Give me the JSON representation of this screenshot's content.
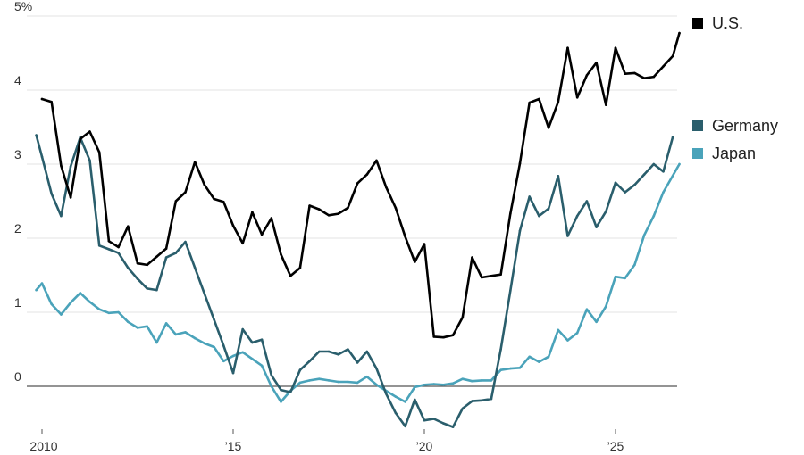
{
  "chart_data": {
    "type": "line",
    "title": "",
    "xlabel": "",
    "ylabel": "",
    "x_domain": [
      2009.8,
      2026.5
    ],
    "ylim": [
      -0.55,
      5.0
    ],
    "y_ticks": [
      {
        "value": 5,
        "label": "5%"
      },
      {
        "value": 4,
        "label": "4"
      },
      {
        "value": 3,
        "label": "3"
      },
      {
        "value": 2,
        "label": "2"
      },
      {
        "value": 1,
        "label": "1"
      },
      {
        "value": 0,
        "label": "0"
      }
    ],
    "x_ticks": [
      {
        "value": 2010,
        "label": "2010"
      },
      {
        "value": 2015,
        "label": "’15"
      },
      {
        "value": 2020,
        "label": "’20"
      },
      {
        "value": 2025,
        "label": "’25"
      }
    ],
    "legend": {
      "placement": "right"
    },
    "series": [
      {
        "name": "U.S.",
        "color": "#000000",
        "points": [
          [
            2010.0,
            3.88
          ],
          [
            2010.25,
            3.84
          ],
          [
            2010.5,
            2.98
          ],
          [
            2010.75,
            2.55
          ],
          [
            2011.0,
            3.34
          ],
          [
            2011.25,
            3.44
          ],
          [
            2011.5,
            3.16
          ],
          [
            2011.75,
            1.96
          ],
          [
            2012.0,
            1.88
          ],
          [
            2012.25,
            2.16
          ],
          [
            2012.5,
            1.66
          ],
          [
            2012.75,
            1.64
          ],
          [
            2013.0,
            1.75
          ],
          [
            2013.25,
            1.86
          ],
          [
            2013.5,
            2.5
          ],
          [
            2013.75,
            2.62
          ],
          [
            2014.0,
            3.03
          ],
          [
            2014.25,
            2.72
          ],
          [
            2014.5,
            2.53
          ],
          [
            2014.75,
            2.49
          ],
          [
            2015.0,
            2.17
          ],
          [
            2015.25,
            1.93
          ],
          [
            2015.5,
            2.35
          ],
          [
            2015.75,
            2.05
          ],
          [
            2016.0,
            2.27
          ],
          [
            2016.25,
            1.78
          ],
          [
            2016.5,
            1.49
          ],
          [
            2016.75,
            1.6
          ],
          [
            2017.0,
            2.44
          ],
          [
            2017.25,
            2.39
          ],
          [
            2017.5,
            2.31
          ],
          [
            2017.75,
            2.33
          ],
          [
            2018.0,
            2.41
          ],
          [
            2018.25,
            2.74
          ],
          [
            2018.5,
            2.86
          ],
          [
            2018.75,
            3.05
          ],
          [
            2019.0,
            2.69
          ],
          [
            2019.25,
            2.41
          ],
          [
            2019.5,
            2.02
          ],
          [
            2019.75,
            1.68
          ],
          [
            2020.0,
            1.92
          ],
          [
            2020.25,
            0.67
          ],
          [
            2020.5,
            0.66
          ],
          [
            2020.75,
            0.69
          ],
          [
            2021.0,
            0.93
          ],
          [
            2021.25,
            1.74
          ],
          [
            2021.5,
            1.47
          ],
          [
            2021.75,
            1.49
          ],
          [
            2022.0,
            1.51
          ],
          [
            2022.25,
            2.33
          ],
          [
            2022.5,
            3.01
          ],
          [
            2022.75,
            3.83
          ],
          [
            2023.0,
            3.88
          ],
          [
            2023.25,
            3.49
          ],
          [
            2023.5,
            3.84
          ],
          [
            2023.75,
            4.57
          ],
          [
            2024.0,
            3.9
          ],
          [
            2024.25,
            4.2
          ],
          [
            2024.5,
            4.37
          ],
          [
            2024.75,
            3.8
          ],
          [
            2025.0,
            4.57
          ],
          [
            2025.25,
            4.22
          ],
          [
            2025.5,
            4.23
          ],
          [
            2025.75,
            4.16
          ],
          [
            2026.0,
            4.18
          ],
          [
            2026.25,
            4.32
          ],
          [
            2026.5,
            4.46
          ],
          [
            2026.67,
            4.77
          ]
        ]
      },
      {
        "name": "Germany",
        "color": "#2a5e6c",
        "points": [
          [
            2009.85,
            3.39
          ],
          [
            2010.0,
            3.1
          ],
          [
            2010.25,
            2.6
          ],
          [
            2010.5,
            2.3
          ],
          [
            2010.75,
            2.97
          ],
          [
            2011.0,
            3.36
          ],
          [
            2011.25,
            3.05
          ],
          [
            2011.5,
            1.9
          ],
          [
            2011.75,
            1.85
          ],
          [
            2012.0,
            1.8
          ],
          [
            2012.25,
            1.6
          ],
          [
            2012.5,
            1.45
          ],
          [
            2012.75,
            1.32
          ],
          [
            2013.0,
            1.3
          ],
          [
            2013.25,
            1.74
          ],
          [
            2013.5,
            1.8
          ],
          [
            2013.75,
            1.95
          ],
          [
            2014.0,
            1.6
          ],
          [
            2014.25,
            1.25
          ],
          [
            2014.5,
            0.9
          ],
          [
            2014.75,
            0.55
          ],
          [
            2015.0,
            0.18
          ],
          [
            2015.25,
            0.77
          ],
          [
            2015.5,
            0.59
          ],
          [
            2015.75,
            0.63
          ],
          [
            2016.0,
            0.15
          ],
          [
            2016.25,
            -0.05
          ],
          [
            2016.5,
            -0.08
          ],
          [
            2016.75,
            0.22
          ],
          [
            2017.0,
            0.34
          ],
          [
            2017.25,
            0.47
          ],
          [
            2017.5,
            0.47
          ],
          [
            2017.75,
            0.43
          ],
          [
            2018.0,
            0.5
          ],
          [
            2018.25,
            0.32
          ],
          [
            2018.5,
            0.47
          ],
          [
            2018.75,
            0.24
          ],
          [
            2019.0,
            -0.1
          ],
          [
            2019.25,
            -0.36
          ],
          [
            2019.5,
            -0.54
          ],
          [
            2019.75,
            -0.18
          ],
          [
            2020.0,
            -0.46
          ],
          [
            2020.25,
            -0.44
          ],
          [
            2020.5,
            -0.5
          ],
          [
            2020.75,
            -0.55
          ],
          [
            2021.0,
            -0.3
          ],
          [
            2021.25,
            -0.2
          ],
          [
            2021.5,
            -0.19
          ],
          [
            2021.75,
            -0.17
          ],
          [
            2022.0,
            0.5
          ],
          [
            2022.25,
            1.29
          ],
          [
            2022.5,
            2.1
          ],
          [
            2022.75,
            2.56
          ],
          [
            2023.0,
            2.3
          ],
          [
            2023.25,
            2.4
          ],
          [
            2023.5,
            2.84
          ],
          [
            2023.75,
            2.03
          ],
          [
            2024.0,
            2.3
          ],
          [
            2024.25,
            2.5
          ],
          [
            2024.5,
            2.15
          ],
          [
            2024.75,
            2.36
          ],
          [
            2025.0,
            2.75
          ],
          [
            2025.25,
            2.62
          ],
          [
            2025.5,
            2.72
          ],
          [
            2025.75,
            2.86
          ],
          [
            2026.0,
            3.0
          ],
          [
            2026.25,
            2.9
          ],
          [
            2026.5,
            3.37
          ]
        ]
      },
      {
        "name": "Japan",
        "color": "#4aa3ba",
        "points": [
          [
            2009.85,
            1.3
          ],
          [
            2010.0,
            1.39
          ],
          [
            2010.25,
            1.11
          ],
          [
            2010.5,
            0.97
          ],
          [
            2010.75,
            1.13
          ],
          [
            2011.0,
            1.26
          ],
          [
            2011.25,
            1.14
          ],
          [
            2011.5,
            1.04
          ],
          [
            2011.75,
            0.99
          ],
          [
            2012.0,
            1.0
          ],
          [
            2012.25,
            0.87
          ],
          [
            2012.5,
            0.79
          ],
          [
            2012.75,
            0.81
          ],
          [
            2013.0,
            0.59
          ],
          [
            2013.25,
            0.85
          ],
          [
            2013.5,
            0.7
          ],
          [
            2013.75,
            0.73
          ],
          [
            2014.0,
            0.65
          ],
          [
            2014.25,
            0.58
          ],
          [
            2014.5,
            0.53
          ],
          [
            2014.75,
            0.34
          ],
          [
            2015.0,
            0.41
          ],
          [
            2015.25,
            0.46
          ],
          [
            2015.5,
            0.37
          ],
          [
            2015.75,
            0.28
          ],
          [
            2016.0,
            0.0
          ],
          [
            2016.25,
            -0.21
          ],
          [
            2016.5,
            -0.06
          ],
          [
            2016.75,
            0.05
          ],
          [
            2017.0,
            0.08
          ],
          [
            2017.25,
            0.1
          ],
          [
            2017.5,
            0.08
          ],
          [
            2017.75,
            0.06
          ],
          [
            2018.0,
            0.06
          ],
          [
            2018.25,
            0.05
          ],
          [
            2018.5,
            0.13
          ],
          [
            2018.75,
            0.02
          ],
          [
            2019.0,
            -0.06
          ],
          [
            2019.25,
            -0.14
          ],
          [
            2019.5,
            -0.21
          ],
          [
            2019.75,
            -0.01
          ],
          [
            2020.0,
            0.02
          ],
          [
            2020.25,
            0.03
          ],
          [
            2020.5,
            0.02
          ],
          [
            2020.75,
            0.04
          ],
          [
            2021.0,
            0.1
          ],
          [
            2021.25,
            0.07
          ],
          [
            2021.5,
            0.08
          ],
          [
            2021.75,
            0.08
          ],
          [
            2022.0,
            0.22
          ],
          [
            2022.25,
            0.24
          ],
          [
            2022.5,
            0.25
          ],
          [
            2022.75,
            0.4
          ],
          [
            2023.0,
            0.33
          ],
          [
            2023.25,
            0.4
          ],
          [
            2023.5,
            0.76
          ],
          [
            2023.75,
            0.62
          ],
          [
            2024.0,
            0.72
          ],
          [
            2024.25,
            1.04
          ],
          [
            2024.5,
            0.87
          ],
          [
            2024.75,
            1.08
          ],
          [
            2025.0,
            1.48
          ],
          [
            2025.25,
            1.46
          ],
          [
            2025.5,
            1.64
          ],
          [
            2025.75,
            2.04
          ],
          [
            2026.0,
            2.3
          ],
          [
            2026.25,
            2.62
          ],
          [
            2026.67,
            3.0
          ]
        ]
      }
    ]
  }
}
